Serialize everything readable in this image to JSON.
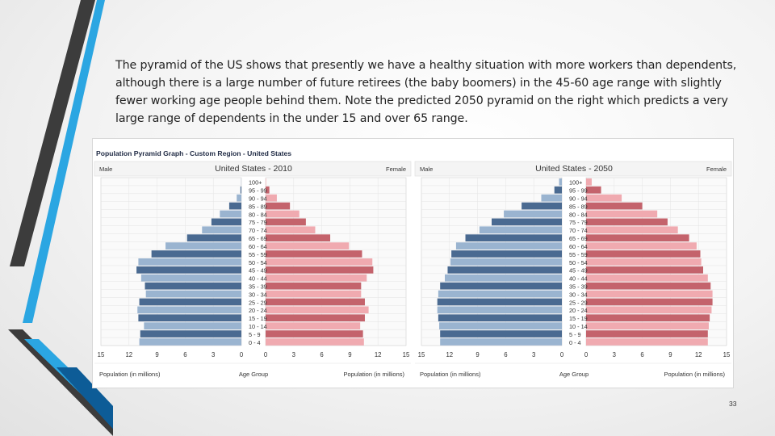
{
  "paragraph": "The pyramid of the US shows that presently we have a healthy situation with more workers than dependents, although there is a large number of future retirees (the baby boomers) in the 45-60 age range with slightly fewer working age people behind them. Note the predicted 2050 pyramid on the right which predicts a very large range of dependents in the under 15 and over 65 range.",
  "figure_title": "Population Pyramid Graph - Custom Region - United States",
  "page_number": "33",
  "colors": {
    "male_dark": "#4a6a91",
    "male_light": "#9ab4d0",
    "female_dark": "#c4636c",
    "female_light": "#f0aab0",
    "deco_dark": "#3c3c3c",
    "deco_blue": "#2ba6e2",
    "deco_navy": "#0d5c97"
  },
  "chart_data": [
    {
      "type": "bar",
      "subtype": "population-pyramid",
      "title": "United States - 2010",
      "left_label": "Male",
      "right_label": "Female",
      "center_label": "Age Group",
      "xlabel_left": "Population (in millions)",
      "xlabel_right": "Population (in millions)",
      "xlim": [
        0,
        15
      ],
      "ticks_left": [
        "15",
        "12",
        "9",
        "6",
        "3",
        "0"
      ],
      "ticks_right": [
        "0",
        "3",
        "6",
        "9",
        "12",
        "15"
      ],
      "categories": [
        "100+",
        "95 - 99",
        "90 - 94",
        "85 - 89",
        "80 - 84",
        "75 - 79",
        "70 - 74",
        "65 - 69",
        "60 - 64",
        "55 - 59",
        "50 - 54",
        "45 - 49",
        "40 - 44",
        "35 - 39",
        "30 - 34",
        "25 - 29",
        "20 - 24",
        "15 - 19",
        "10 - 14",
        "5 - 9",
        "0 - 4"
      ],
      "series": [
        {
          "name": "Male",
          "values": [
            0.02,
            0.1,
            0.5,
            1.3,
            2.3,
            3.2,
            4.2,
            5.8,
            8.1,
            9.6,
            11.0,
            11.2,
            10.7,
            10.3,
            10.2,
            10.9,
            11.1,
            11.0,
            10.4,
            10.8,
            10.9
          ]
        },
        {
          "name": "Female",
          "values": [
            0.05,
            0.4,
            1.2,
            2.6,
            3.6,
            4.3,
            5.3,
            6.9,
            8.9,
            10.3,
            11.4,
            11.5,
            10.8,
            10.2,
            10.2,
            10.6,
            11.0,
            10.6,
            10.1,
            10.4,
            10.5
          ]
        }
      ]
    },
    {
      "type": "bar",
      "subtype": "population-pyramid",
      "title": "United States - 2050",
      "left_label": "Male",
      "right_label": "Female",
      "center_label": "Age Group",
      "xlabel_left": "Population (in millions)",
      "xlabel_right": "Population (in millions)",
      "xlim": [
        0,
        15
      ],
      "ticks_left": [
        "15",
        "12",
        "9",
        "6",
        "3",
        "0"
      ],
      "ticks_right": [
        "0",
        "3",
        "6",
        "9",
        "12",
        "15"
      ],
      "categories": [
        "100+",
        "95 - 99",
        "90 - 94",
        "85 - 89",
        "80 - 84",
        "75 - 79",
        "70 - 74",
        "65 - 69",
        "60 - 64",
        "55 - 59",
        "50 - 54",
        "45 - 49",
        "40 - 44",
        "35 - 39",
        "30 - 34",
        "25 - 29",
        "20 - 24",
        "15 - 19",
        "10 - 14",
        "5 - 9",
        "0 - 4"
      ],
      "series": [
        {
          "name": "Male",
          "values": [
            0.3,
            0.8,
            2.2,
            4.3,
            6.2,
            7.5,
            8.8,
            10.3,
            11.3,
            11.8,
            11.9,
            12.2,
            12.5,
            13.0,
            13.2,
            13.3,
            13.3,
            13.2,
            13.1,
            13.0,
            13.0
          ]
        },
        {
          "name": "Female",
          "values": [
            0.6,
            1.6,
            3.8,
            6.0,
            7.6,
            8.7,
            9.8,
            11.0,
            11.8,
            12.2,
            12.3,
            12.5,
            13.0,
            13.3,
            13.5,
            13.5,
            13.4,
            13.2,
            13.1,
            13.0,
            13.0
          ]
        }
      ]
    }
  ]
}
